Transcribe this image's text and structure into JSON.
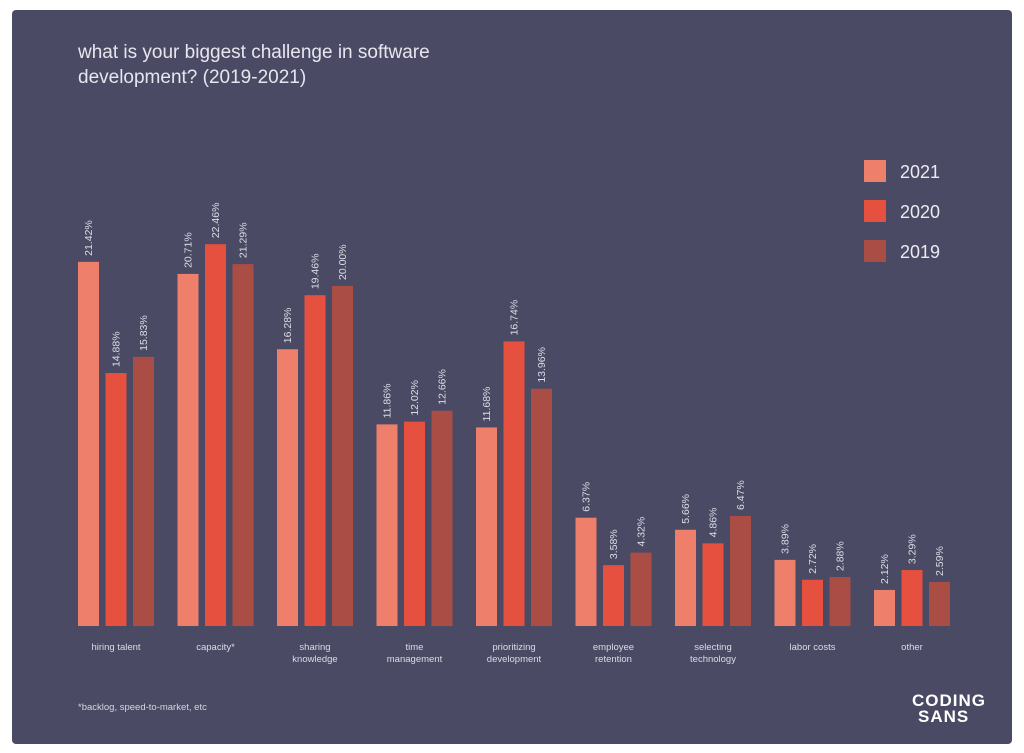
{
  "chart_data": {
    "type": "bar",
    "title": "what is your biggest challenge in software development? (2019-2021)",
    "title_line1": "what is your biggest challenge in software",
    "title_line2": "development? (2019-2021)",
    "categories": [
      [
        "hiring talent"
      ],
      [
        "capacity*"
      ],
      [
        "sharing",
        "knowledge"
      ],
      [
        "time",
        "management"
      ],
      [
        "prioritizing",
        "development"
      ],
      [
        "employee",
        "retention"
      ],
      [
        "selecting",
        "technology"
      ],
      [
        "labor costs"
      ],
      [
        "other"
      ]
    ],
    "series": [
      {
        "name": "2021",
        "color": "#ee7f6b",
        "values": [
          21.42,
          20.71,
          16.28,
          11.86,
          11.68,
          6.37,
          5.66,
          3.89,
          2.12
        ]
      },
      {
        "name": "2020",
        "color": "#e6503e",
        "values": [
          14.88,
          22.46,
          19.46,
          12.02,
          16.74,
          3.58,
          4.86,
          2.72,
          3.29
        ]
      },
      {
        "name": "2019",
        "color": "#a94d45",
        "values": [
          15.83,
          21.29,
          20.0,
          12.66,
          13.96,
          4.32,
          6.47,
          2.88,
          2.59
        ]
      }
    ],
    "value_labels": [
      [
        "21.42%",
        "20.71%",
        "16.28%",
        "11.86%",
        "11.68%",
        "6.37%",
        "5.66%",
        "3.89%",
        "2.12%"
      ],
      [
        "14.88%",
        "22.46%",
        "19.46%",
        "12.02%",
        "16.74%",
        "3.58%",
        "4.86%",
        "2.72%",
        "3.29%"
      ],
      [
        "15.83%",
        "21.29%",
        "20.00%",
        "12.66%",
        "13.96%",
        "4.32%",
        "6.47%",
        "2.88%",
        "2.59%"
      ]
    ],
    "legend_position": "top-right",
    "ylim": [
      0,
      23
    ]
  },
  "footnote": "*backlog, speed-to-market, etc",
  "brand": {
    "line1": "CODING",
    "line2": "SANS"
  },
  "colors": {
    "background": "#4b4a64",
    "text": "#dcdbe4"
  }
}
